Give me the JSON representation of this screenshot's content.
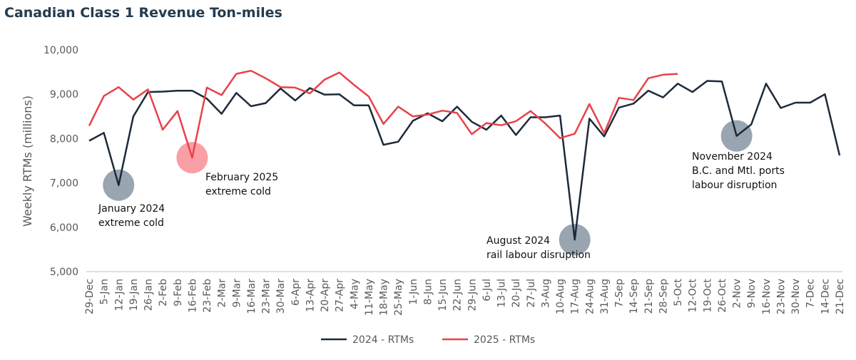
{
  "chart_data": {
    "type": "line",
    "title": "Canadian Class 1 Revenue Ton-miles",
    "y_label": "Weekly RTMs (millions)",
    "categories": [
      "29-Dec",
      "5-Jan",
      "12-Jan",
      "19-Jan",
      "26-Jan",
      "2-Feb",
      "9-Feb",
      "16-Feb",
      "23-Feb",
      "2-Mar",
      "9-Mar",
      "16-Mar",
      "23-Mar",
      "30-Mar",
      "6-Apr",
      "13-Apr",
      "20-Apr",
      "27-Apr",
      "4-May",
      "11-May",
      "18-May",
      "25-May",
      "1-Jun",
      "8-Jun",
      "15-Jun",
      "22-Jun",
      "29-Jun",
      "6-Jul",
      "13-Jul",
      "20-Jul",
      "27-Jul",
      "3-Aug",
      "10-Aug",
      "17-Aug",
      "24-Aug",
      "31-Aug",
      "7-Sep",
      "14-Sep",
      "21-Sep",
      "28-Sep",
      "5-Oct",
      "12-Oct",
      "19-Oct",
      "26-Oct",
      "2-Nov",
      "9-Nov",
      "16-Nov",
      "23-Nov",
      "30-Nov",
      "7-Dec",
      "14-Dec",
      "21-Dec"
    ],
    "series": [
      {
        "name": "2024 - RTMs",
        "color": "#1c2a3a",
        "values": [
          7950,
          8130,
          6950,
          8500,
          9050,
          9060,
          9080,
          9080,
          8900,
          8560,
          9030,
          8730,
          8800,
          9130,
          8860,
          9140,
          8990,
          9000,
          8750,
          8750,
          7860,
          7930,
          8400,
          8570,
          8390,
          8720,
          8380,
          8200,
          8520,
          8080,
          8480,
          8480,
          8520,
          5720,
          8450,
          8050,
          8700,
          8790,
          9080,
          8930,
          9240,
          9050,
          9300,
          9290,
          8060,
          8320,
          9240,
          8690,
          8810,
          8810,
          9000,
          7620
        ]
      },
      {
        "name": "2025 - RTMs",
        "color": "#e8414b",
        "values": [
          8290,
          8960,
          9160,
          8880,
          9110,
          8200,
          8620,
          7570,
          9150,
          8980,
          9460,
          9530,
          9360,
          9160,
          9150,
          9020,
          9330,
          9490,
          9210,
          8950,
          8330,
          8720,
          8500,
          8540,
          8630,
          8580,
          8100,
          8350,
          8300,
          8390,
          8620,
          8340,
          8010,
          8110,
          8780,
          8120,
          8920,
          8870,
          9360,
          9440,
          9460,
          null,
          null,
          null,
          null,
          null,
          null,
          null,
          null,
          null,
          null,
          null
        ]
      }
    ],
    "ylim": [
      5000,
      10000
    ],
    "yticks": [
      {
        "value": 5000,
        "label": "5,000"
      },
      {
        "value": 6000,
        "label": "6,000"
      },
      {
        "value": 7000,
        "label": "7,000"
      },
      {
        "value": 8000,
        "label": "8,000"
      },
      {
        "value": 9000,
        "label": "9,000"
      },
      {
        "value": 10000,
        "label": "10,000"
      }
    ],
    "annotations": [
      {
        "lines": [
          "January 2024",
          "extreme cold"
        ]
      },
      {
        "lines": [
          "February 2025",
          "extreme cold"
        ]
      },
      {
        "lines": [
          "August 2024",
          "rail labour disruption"
        ]
      },
      {
        "lines": [
          "November 2024",
          "B.C. and Mtl. ports",
          "labour disruption"
        ]
      }
    ],
    "legend": "bottom"
  }
}
